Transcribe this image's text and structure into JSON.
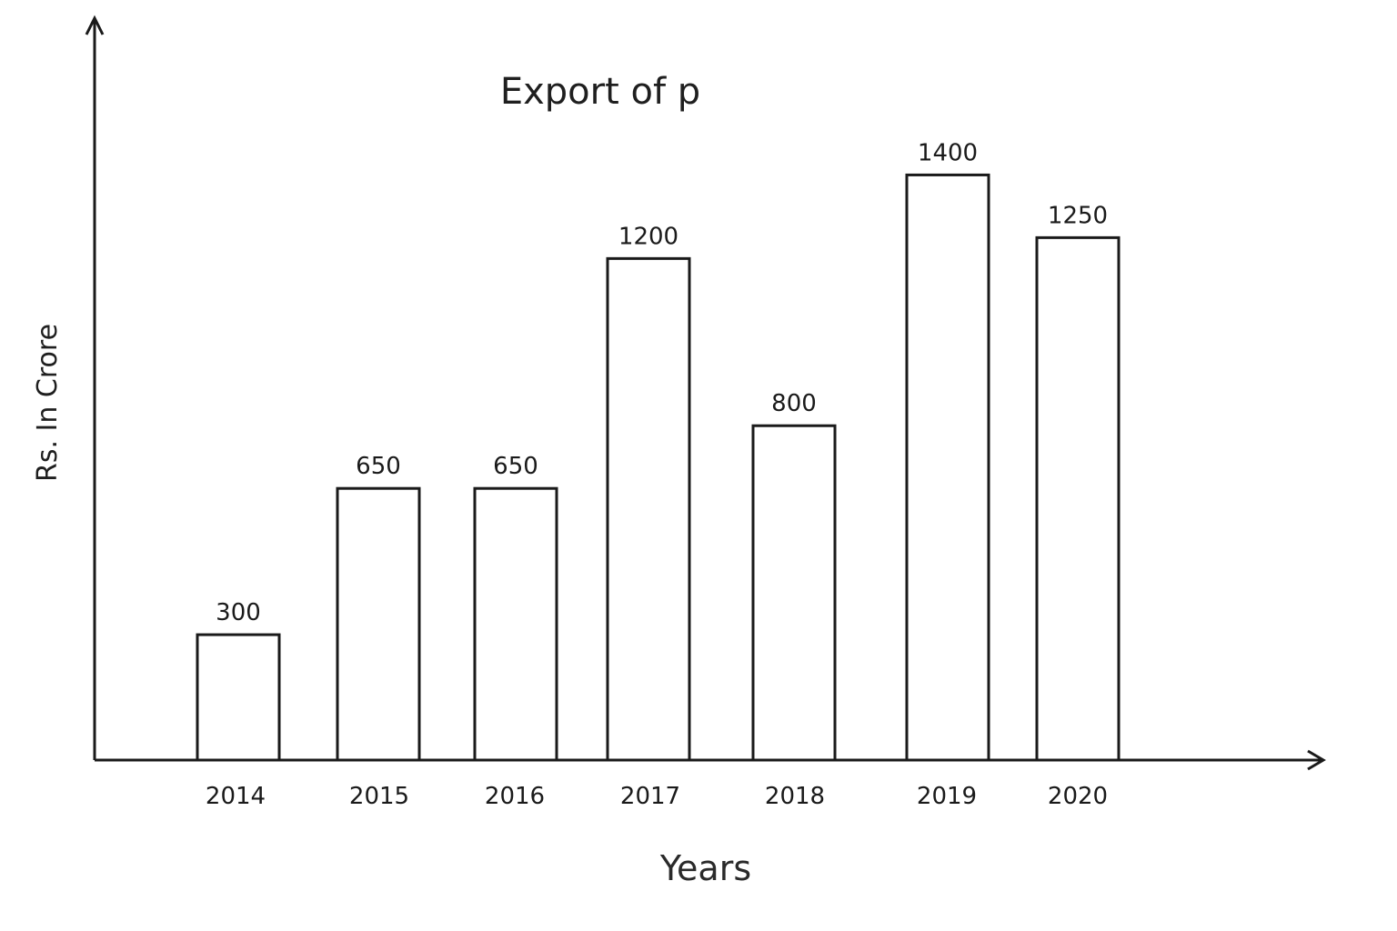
{
  "chart_data": {
    "type": "bar",
    "title": "Export of p",
    "xlabel": "Years",
    "ylabel": "Rs. In Crore",
    "categories": [
      "2014",
      "2015",
      "2016",
      "2017",
      "2018",
      "2019",
      "2020"
    ],
    "values": [
      300,
      650,
      650,
      1200,
      800,
      1400,
      1250
    ],
    "value_labels": [
      "300",
      "650",
      "650",
      "1200",
      "800",
      "1400",
      "1250"
    ],
    "ylim": [
      0,
      1600
    ],
    "grid": false,
    "legend": "none",
    "bar_fill": "#ffffff",
    "bar_stroke": "#1a1a1a"
  }
}
